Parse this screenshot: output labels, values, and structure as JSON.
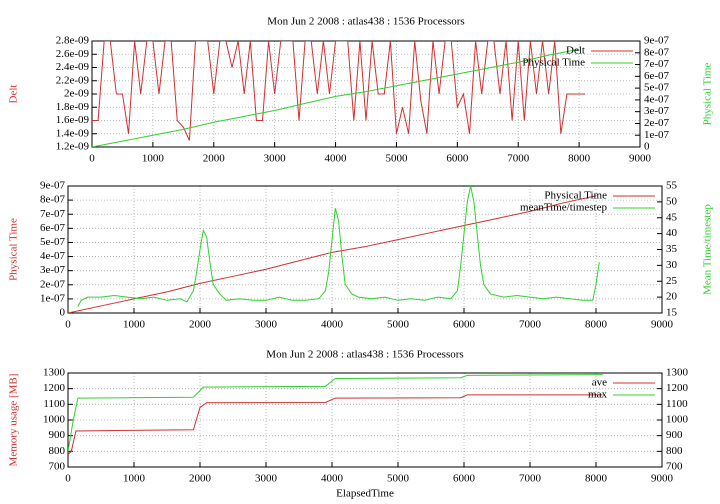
{
  "chart_data": [
    {
      "type": "line",
      "title": "Mon Jun 2 2008 : atlas438 : 1536 Processors",
      "ylabel": "Delt",
      "y2label": "Physical Time",
      "legend": "top right",
      "grid": true,
      "xlim": [
        0,
        9000
      ],
      "xticks": [
        0,
        1000,
        2000,
        3000,
        4000,
        5000,
        6000,
        7000,
        8000,
        9000
      ],
      "ylim": [
        1.2e-09,
        2.8e-09
      ],
      "yticks": [
        {
          "value": 1.2e-09,
          "label": "1.2e-09"
        },
        {
          "value": 1.4e-09,
          "label": "1.4e-09"
        },
        {
          "value": 1.6e-09,
          "label": "1.6e-09"
        },
        {
          "value": 1.8e-09,
          "label": "1.8e-09"
        },
        {
          "value": 2e-09,
          "label": "2e-09"
        },
        {
          "value": 2.2e-09,
          "label": "2.2e-09"
        },
        {
          "value": 2.4e-09,
          "label": "2.4e-09"
        },
        {
          "value": 2.6e-09,
          "label": "2.6e-09"
        },
        {
          "value": 2.8e-09,
          "label": "2.8e-09"
        }
      ],
      "y2lim": [
        0,
        9e-07
      ],
      "y2ticks": [
        0,
        {
          "value": 1e-07,
          "label": "1e-07"
        },
        {
          "value": 2e-07,
          "label": "2e-07"
        },
        {
          "value": 3e-07,
          "label": "3e-07"
        },
        {
          "value": 4e-07,
          "label": "4e-07"
        },
        {
          "value": 5e-07,
          "label": "5e-07"
        },
        {
          "value": 6e-07,
          "label": "6e-07"
        },
        {
          "value": 7e-07,
          "label": "7e-07"
        },
        {
          "value": 8e-07,
          "label": "8e-07"
        },
        {
          "value": 9e-07,
          "label": "9e-07"
        }
      ],
      "series": [
        {
          "name": "Delt",
          "color": "#d03030",
          "x": [
            0,
            100,
            200,
            300,
            400,
            500,
            600,
            700,
            800,
            900,
            1000,
            1100,
            1200,
            1300,
            1400,
            1500,
            1600,
            1700,
            1800,
            1900,
            2000,
            2100,
            2200,
            2300,
            2400,
            2500,
            2600,
            2700,
            2800,
            2900,
            3000,
            3100,
            3200,
            3300,
            3400,
            3500,
            3600,
            3700,
            3800,
            3900,
            4000,
            4100,
            4200,
            4300,
            4400,
            4500,
            4600,
            4700,
            4800,
            4900,
            5000,
            5100,
            5200,
            5300,
            5400,
            5500,
            5600,
            5700,
            5800,
            5900,
            6000,
            6100,
            6200,
            6300,
            6400,
            6500,
            6600,
            6700,
            6800,
            6900,
            7000,
            7100,
            7200,
            7300,
            7400,
            7500,
            7600,
            7700,
            7800,
            7900,
            8000,
            8100
          ],
          "values": [
            1.6e-09,
            1.6e-09,
            2.8e-09,
            2.8e-09,
            2e-09,
            2e-09,
            1.4e-09,
            2.8e-09,
            2e-09,
            2.8e-09,
            2.8e-09,
            2e-09,
            2.8e-09,
            2.8e-09,
            1.6e-09,
            1.5e-09,
            1.3e-09,
            2.8e-09,
            2.8e-09,
            2.8e-09,
            2e-09,
            2.8e-09,
            2.8e-09,
            2.4e-09,
            2.8e-09,
            2e-09,
            2.8e-09,
            1.6e-09,
            1.6e-09,
            2.8e-09,
            2e-09,
            2.8e-09,
            2.8e-09,
            2.8e-09,
            1.6e-09,
            2.8e-09,
            2.8e-09,
            2e-09,
            2.8e-09,
            2e-09,
            2.8e-09,
            2.8e-09,
            2.8e-09,
            1.6e-09,
            2.8e-09,
            1.6e-09,
            2.8e-09,
            2e-09,
            2e-09,
            2.8e-09,
            1.4e-09,
            1.8e-09,
            1.4e-09,
            2.8e-09,
            1.9e-09,
            1.4e-09,
            2.8e-09,
            2e-09,
            2.8e-09,
            2.8e-09,
            1.8e-09,
            2e-09,
            1.4e-09,
            2.8e-09,
            2e-09,
            2.8e-09,
            2.8e-09,
            2e-09,
            2.8e-09,
            1.6e-09,
            2.8e-09,
            1.6e-09,
            2.8e-09,
            2e-09,
            2.8e-09,
            2e-09,
            2.8e-09,
            1.4e-09,
            2e-09,
            2e-09,
            2e-09,
            2e-09
          ]
        },
        {
          "name": "Physical Time",
          "color": "#30d030",
          "axis": "y2",
          "x": [
            0,
            500,
            1000,
            1500,
            2000,
            2500,
            3000,
            3500,
            4000,
            4500,
            5000,
            5500,
            6000,
            6500,
            7000,
            7500,
            8000
          ],
          "values": [
            0,
            5e-08,
            1e-07,
            1.5e-07,
            2.1e-07,
            2.6e-07,
            3.1e-07,
            3.7e-07,
            4.3e-07,
            4.7e-07,
            5.2e-07,
            5.7e-07,
            6.2e-07,
            6.7e-07,
            7.2e-07,
            7.8e-07,
            8.3e-07
          ]
        }
      ]
    },
    {
      "type": "line",
      "ylabel": "Physical Time",
      "y2label": "Mean Time/timestep",
      "legend": "top right",
      "grid": true,
      "xlim": [
        0,
        9000
      ],
      "xticks": [
        0,
        1000,
        2000,
        3000,
        4000,
        5000,
        6000,
        7000,
        8000,
        9000
      ],
      "ylim": [
        0,
        9e-07
      ],
      "yticks": [
        0,
        {
          "value": 1e-07,
          "label": "1e-07"
        },
        {
          "value": 2e-07,
          "label": "2e-07"
        },
        {
          "value": 3e-07,
          "label": "3e-07"
        },
        {
          "value": 4e-07,
          "label": "4e-07"
        },
        {
          "value": 5e-07,
          "label": "5e-07"
        },
        {
          "value": 6e-07,
          "label": "6e-07"
        },
        {
          "value": 7e-07,
          "label": "7e-07"
        },
        {
          "value": 8e-07,
          "label": "8e-07"
        },
        {
          "value": 9e-07,
          "label": "9e-07"
        }
      ],
      "y2lim": [
        15,
        55
      ],
      "y2ticks": [
        15,
        20,
        25,
        30,
        35,
        40,
        45,
        50,
        55
      ],
      "series": [
        {
          "name": "Physical Time",
          "color": "#d03030",
          "x": [
            0,
            500,
            1000,
            1500,
            2000,
            2500,
            3000,
            3500,
            4000,
            4500,
            5000,
            5500,
            6000,
            6500,
            7000,
            7500,
            8000
          ],
          "values": [
            0,
            5e-08,
            1e-07,
            1.5e-07,
            2.1e-07,
            2.6e-07,
            3.1e-07,
            3.7e-07,
            4.3e-07,
            4.7e-07,
            5.2e-07,
            5.7e-07,
            6.2e-07,
            6.7e-07,
            7.2e-07,
            7.8e-07,
            8.3e-07
          ]
        },
        {
          "name": "meanTime/timestep",
          "color": "#30d030",
          "axis": "y2",
          "x": [
            150,
            200,
            300,
            500,
            700,
            900,
            1100,
            1300,
            1500,
            1700,
            1800,
            1900,
            1950,
            2000,
            2050,
            2100,
            2150,
            2200,
            2300,
            2400,
            2600,
            2800,
            3000,
            3200,
            3400,
            3600,
            3800,
            3900,
            3950,
            4000,
            4050,
            4100,
            4150,
            4200,
            4300,
            4400,
            4600,
            4800,
            5000,
            5200,
            5400,
            5600,
            5800,
            5900,
            5950,
            6000,
            6050,
            6100,
            6150,
            6200,
            6250,
            6300,
            6400,
            6600,
            6800,
            7000,
            7200,
            7400,
            7600,
            7800,
            7950,
            8000,
            8050
          ],
          "values": [
            17,
            19,
            20,
            20,
            20.5,
            20,
            19.5,
            20,
            19,
            19.5,
            18.5,
            22,
            28,
            35,
            41,
            39,
            31,
            24,
            21,
            19,
            19.5,
            19,
            19,
            20,
            19,
            19,
            19.5,
            22,
            28,
            38,
            48,
            44,
            33,
            24,
            21,
            20,
            19.5,
            20,
            19,
            19.5,
            19,
            20,
            19.5,
            22,
            30,
            40,
            50,
            55,
            50,
            40,
            30,
            24,
            21,
            20,
            20.5,
            20,
            19.5,
            20,
            19.5,
            19,
            19,
            24,
            31
          ]
        }
      ]
    },
    {
      "type": "line",
      "title": "Mon Jun 2 2008 : atlas438 : 1536 Processors",
      "ylabel": "Memory usage [MB]",
      "xlabel": "ElapsedTime",
      "legend": "top right",
      "grid": true,
      "xlim": [
        0,
        9000
      ],
      "xticks": [
        0,
        1000,
        2000,
        3000,
        4000,
        5000,
        6000,
        7000,
        8000,
        9000
      ],
      "ylim": [
        700,
        1300
      ],
      "yticks": [
        700,
        800,
        900,
        1000,
        1100,
        1200,
        1300
      ],
      "y2lim": [
        700,
        1300
      ],
      "y2ticks": [
        700,
        800,
        900,
        1000,
        1100,
        1200,
        1300
      ],
      "series": [
        {
          "name": "ave",
          "color": "#d03030",
          "x": [
            0,
            50,
            120,
            1900,
            2000,
            2100,
            3900,
            4050,
            5950,
            6050,
            8100
          ],
          "values": [
            780,
            800,
            930,
            938,
            1080,
            1110,
            1112,
            1140,
            1142,
            1160,
            1160
          ]
        },
        {
          "name": "max",
          "color": "#30d030",
          "x": [
            0,
            80,
            150,
            1900,
            2050,
            3900,
            4050,
            5950,
            6050,
            8100
          ],
          "values": [
            800,
            1000,
            1140,
            1145,
            1210,
            1215,
            1265,
            1270,
            1285,
            1290
          ]
        }
      ]
    }
  ]
}
